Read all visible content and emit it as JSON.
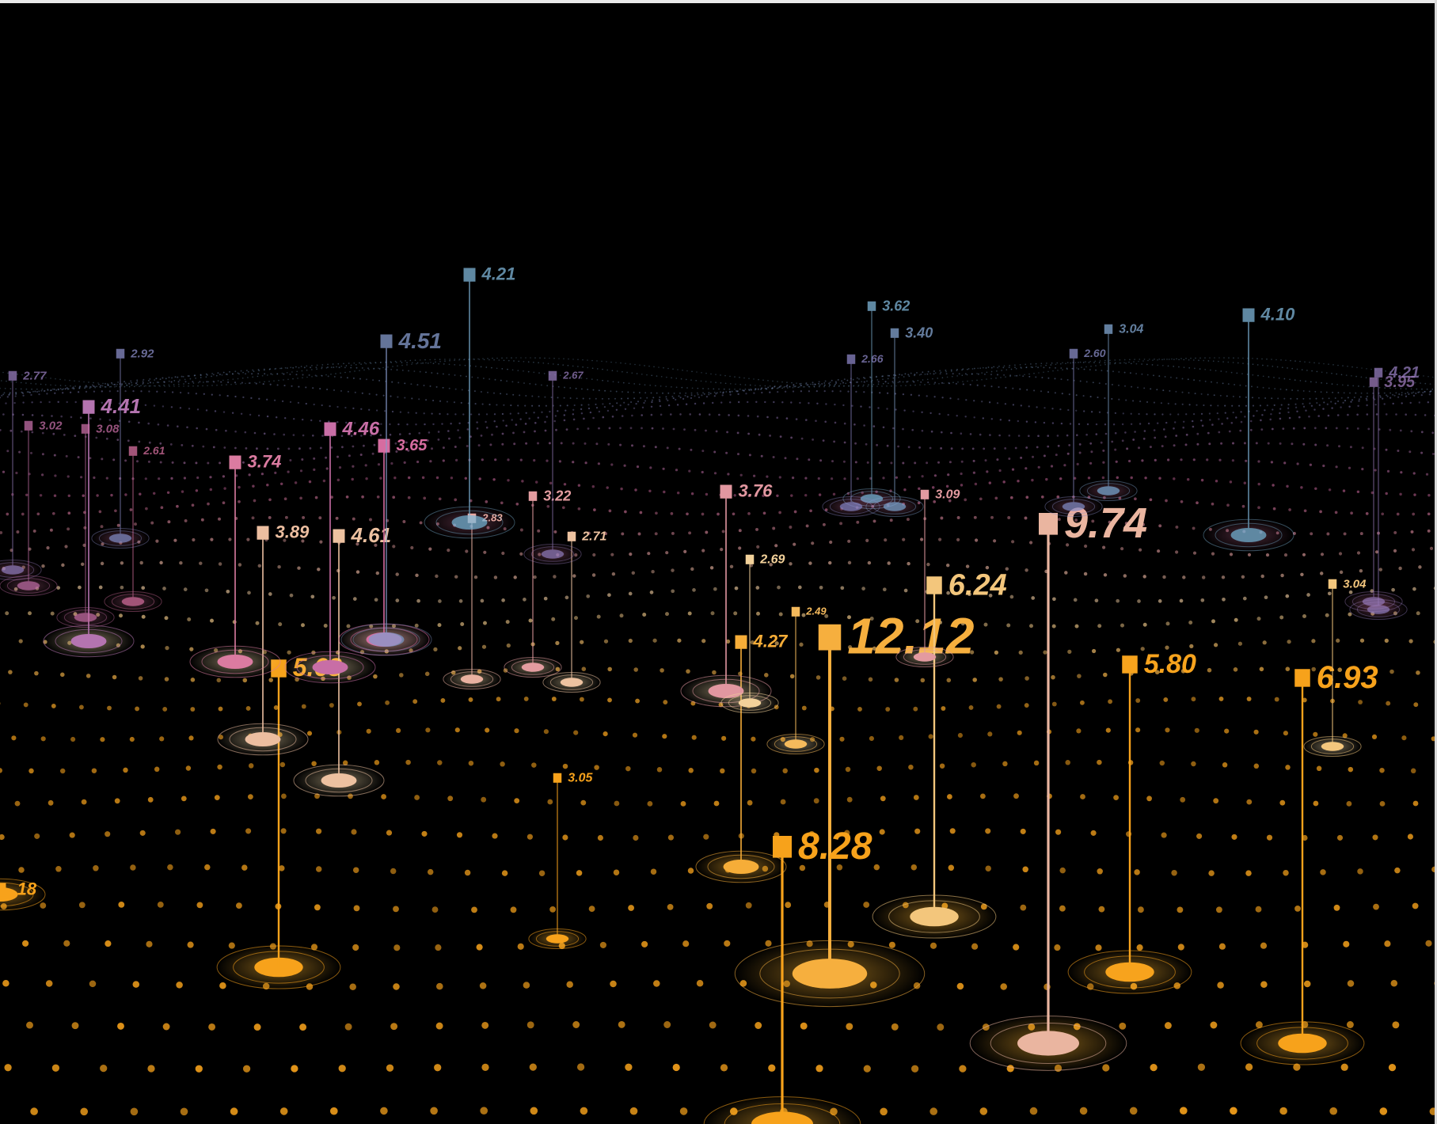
{
  "scene": {
    "description_kind": "abstract 3D data-landscape illustration",
    "palette": {
      "background": "#000000",
      "near": "#f7a21b",
      "mid": "#f2d3a0",
      "far_pink": "#d66aa0",
      "far_blue": "#7fb6d9",
      "far_violet": "#8d7fc1"
    },
    "markers": [
      {
        "label": "12.12",
        "depth": "near",
        "prominence": 5
      },
      {
        "label": "9.74",
        "depth": "near",
        "prominence": 4
      },
      {
        "label": "8.28",
        "depth": "near",
        "prominence": 4
      },
      {
        "label": "6.93",
        "depth": "near",
        "prominence": 3
      },
      {
        "label": "6.24",
        "depth": "near",
        "prominence": 3
      },
      {
        "label": "5.80",
        "depth": "near",
        "prominence": 3
      },
      {
        "label": "5.63",
        "depth": "near",
        "prominence": 3
      },
      {
        "label": "4.27",
        "depth": "near",
        "prominence": 2
      },
      {
        "label": "3.05",
        "depth": "near",
        "prominence": 1
      },
      {
        "label": ".18",
        "depth": "near",
        "prominence": 2
      },
      {
        "label": "4.61",
        "depth": "mid",
        "prominence": 2
      },
      {
        "label": "3.89",
        "depth": "mid",
        "prominence": 2
      },
      {
        "label": "3.74",
        "depth": "mid",
        "prominence": 2
      },
      {
        "label": "4.46",
        "depth": "mid",
        "prominence": 2
      },
      {
        "label": "3.65",
        "depth": "mid",
        "prominence": 2
      },
      {
        "label": "4.41",
        "depth": "mid",
        "prominence": 2
      },
      {
        "label": "3.76",
        "depth": "mid",
        "prominence": 2
      },
      {
        "label": "3.22",
        "depth": "mid",
        "prominence": 1
      },
      {
        "label": "2.71",
        "depth": "mid",
        "prominence": 1
      },
      {
        "label": "2.69",
        "depth": "mid",
        "prominence": 1
      },
      {
        "label": "3.09",
        "depth": "mid",
        "prominence": 1
      },
      {
        "label": "2.49",
        "depth": "mid",
        "prominence": 1
      },
      {
        "label": "2.83",
        "depth": "mid",
        "prominence": 1
      },
      {
        "label": "3.04",
        "depth": "mid",
        "prominence": 1
      },
      {
        "label": "4.51",
        "depth": "far",
        "prominence": 2
      },
      {
        "label": "4.21",
        "depth": "far",
        "prominence": 2
      },
      {
        "label": "3.62",
        "depth": "far",
        "prominence": 1
      },
      {
        "label": "3.40",
        "depth": "far",
        "prominence": 1
      },
      {
        "label": "3.04",
        "depth": "far",
        "prominence": 1
      },
      {
        "label": "4.10",
        "depth": "far",
        "prominence": 2
      },
      {
        "label": "4.21",
        "depth": "far",
        "prominence": 1
      },
      {
        "label": "3.95",
        "depth": "far",
        "prominence": 1
      },
      {
        "label": "2.92",
        "depth": "far",
        "prominence": 1
      },
      {
        "label": "2.77",
        "depth": "far",
        "prominence": 1
      },
      {
        "label": "3.02",
        "depth": "far",
        "prominence": 1
      },
      {
        "label": "3.08",
        "depth": "far",
        "prominence": 1
      },
      {
        "label": "2.61",
        "depth": "far",
        "prominence": 1
      },
      {
        "label": "2.60",
        "depth": "far",
        "prominence": 1
      },
      {
        "label": "2.66",
        "depth": "far",
        "prominence": 1
      },
      {
        "label": "2.67",
        "depth": "far",
        "prominence": 1
      }
    ]
  }
}
